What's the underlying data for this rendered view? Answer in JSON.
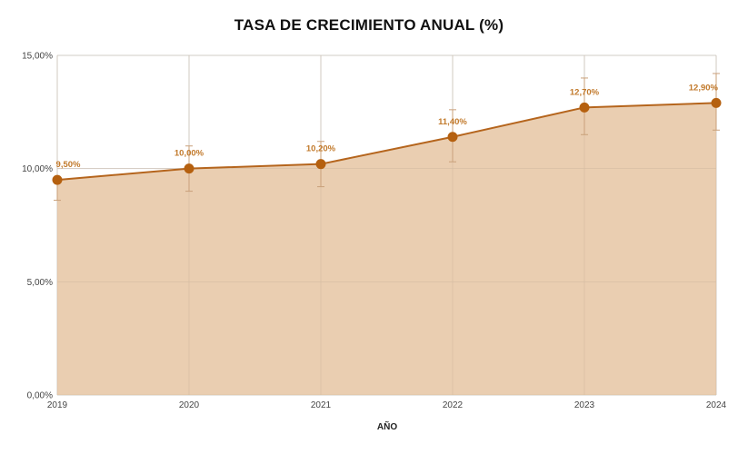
{
  "chart_data": {
    "type": "area",
    "title": "TASA DE CRECIMIENTO ANUAL (%)",
    "xlabel": "AÑO",
    "ylabel": "",
    "categories": [
      "2019",
      "2020",
      "2021",
      "2022",
      "2023",
      "2024"
    ],
    "values": [
      9.5,
      10.0,
      10.2,
      11.4,
      12.7,
      12.9
    ],
    "data_labels": [
      "9,50%",
      "10,00%",
      "10,20%",
      "11,40%",
      "12,70%",
      "12,90%"
    ],
    "error_bars": [
      {
        "low": 8.6,
        "high": 9.6
      },
      {
        "low": 9.0,
        "high": 11.0
      },
      {
        "low": 9.2,
        "high": 11.2
      },
      {
        "low": 10.3,
        "high": 12.6
      },
      {
        "low": 11.5,
        "high": 14.0
      },
      {
        "low": 11.7,
        "high": 14.2
      }
    ],
    "ylim": [
      0,
      15
    ],
    "yticks": [
      0,
      5,
      10,
      15
    ],
    "ytick_labels": [
      "0,00%",
      "5,00%",
      "10,00%",
      "15,00%"
    ],
    "grid": true,
    "legend": "none",
    "colors": {
      "line": "#b5651d",
      "fill": "#e8c9a8",
      "marker": "#b5600f",
      "label": "#c27a2c",
      "grid": "#d6d6d6",
      "error_bar": "#c9a07a"
    }
  }
}
